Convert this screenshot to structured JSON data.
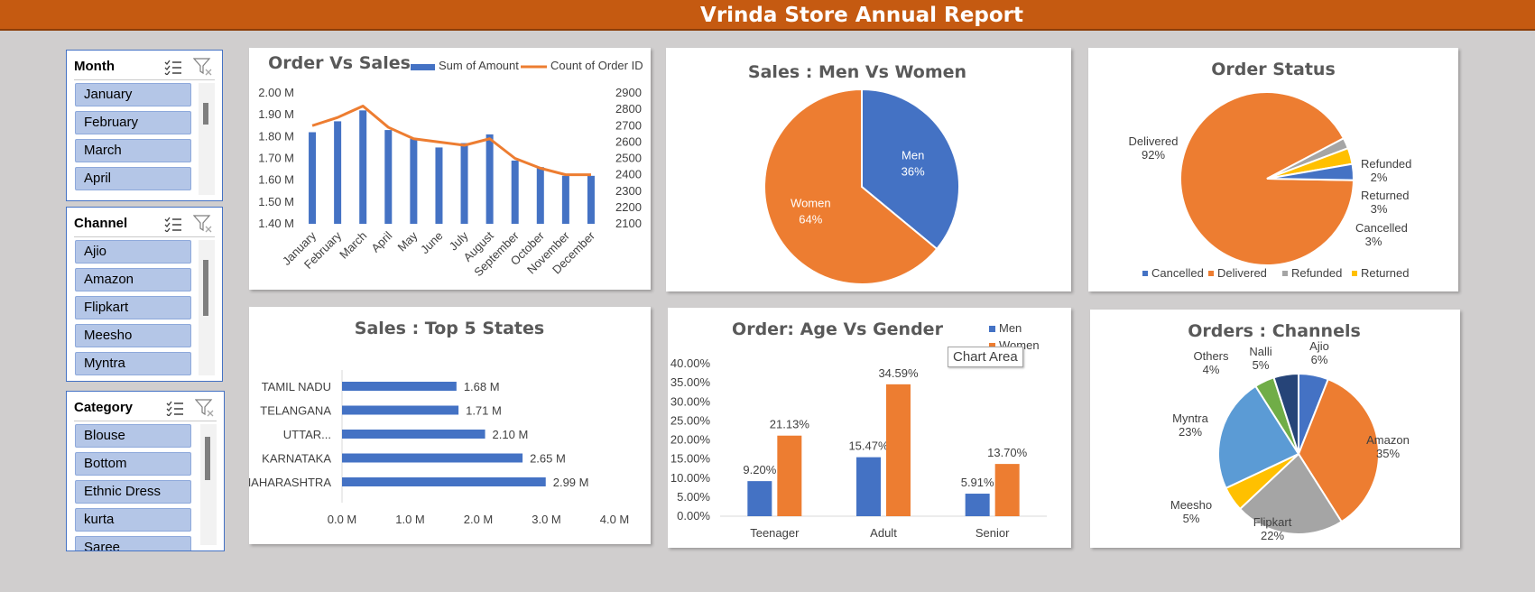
{
  "header": {
    "title": "Vrinda Store Annual Report"
  },
  "slicers": [
    {
      "title": "Month",
      "items": [
        "January",
        "February",
        "March",
        "April"
      ]
    },
    {
      "title": "Channel",
      "items": [
        "Ajio",
        "Amazon",
        "Flipkart",
        "Meesho",
        "Myntra"
      ]
    },
    {
      "title": "Category",
      "items": [
        "Blouse",
        "Bottom",
        "Ethnic Dress",
        "kurta",
        "Saree"
      ]
    }
  ],
  "tooltip": "Chart Area",
  "chart_data": [
    {
      "type": "bar",
      "title": "Order Vs Sales",
      "categories": [
        "January",
        "February",
        "March",
        "April",
        "May",
        "June",
        "July",
        "August",
        "September",
        "October",
        "November",
        "December"
      ],
      "series": [
        {
          "name": "Sum of Amount",
          "type": "bar",
          "axis": "left",
          "values": [
            1.82,
            1.87,
            1.92,
            1.83,
            1.79,
            1.75,
            1.77,
            1.81,
            1.69,
            1.66,
            1.62,
            1.62
          ]
        },
        {
          "name": "Count of Order ID",
          "type": "line",
          "axis": "right",
          "values": [
            2700,
            2750,
            2820,
            2690,
            2620,
            2600,
            2580,
            2620,
            2500,
            2440,
            2400,
            2400
          ]
        }
      ],
      "ylim": [
        1.4,
        2.0
      ],
      "y_ticks": [
        "1.40 M",
        "1.50 M",
        "1.60 M",
        "1.70 M",
        "1.80 M",
        "1.90 M",
        "2.00 M"
      ],
      "y2lim": [
        2100,
        2900
      ],
      "y2_ticks": [
        "2100",
        "2200",
        "2300",
        "2400",
        "2500",
        "2600",
        "2700",
        "2800",
        "2900"
      ],
      "legend": "top",
      "colors": [
        "#4472c4",
        "#ed7d31"
      ]
    },
    {
      "type": "pie",
      "title": "Sales : Men Vs Women",
      "slices": [
        {
          "label": "Men",
          "value": 36,
          "display": "36%",
          "color": "#4472c4"
        },
        {
          "label": "Women",
          "value": 64,
          "display": "64%",
          "color": "#ed7d31"
        }
      ]
    },
    {
      "type": "pie",
      "title": "Order Status",
      "slices": [
        {
          "label": "Delivered",
          "value": 92,
          "display": "92%",
          "color": "#ed7d31"
        },
        {
          "label": "Refunded",
          "value": 2,
          "display": "2%",
          "color": "#a5a5a5"
        },
        {
          "label": "Returned",
          "value": 3,
          "display": "3%",
          "color": "#ffc000"
        },
        {
          "label": "Cancelled",
          "value": 3,
          "display": "3%",
          "color": "#4472c4"
        }
      ],
      "legend": [
        "Cancelled",
        "Delivered",
        "Refunded",
        "Returned"
      ],
      "legend_colors": [
        "#4472c4",
        "#ed7d31",
        "#a5a5a5",
        "#ffc000"
      ],
      "legend_position": "bottom"
    },
    {
      "type": "bar",
      "orientation": "horizontal",
      "title": "Sales : Top 5 States",
      "categories": [
        "TAMIL NADU",
        "TELANGANA",
        "UTTAR...",
        "KARNATAKA",
        "MAHARASHTRA"
      ],
      "values": [
        1.68,
        1.71,
        2.1,
        2.65,
        2.99
      ],
      "value_labels": [
        "1.68 M",
        "1.71 M",
        "2.10 M",
        "2.65 M",
        "2.99 M"
      ],
      "xlim": [
        0,
        4
      ],
      "x_ticks": [
        "0.0 M",
        "1.0 M",
        "2.0 M",
        "3.0 M",
        "4.0 M"
      ],
      "color": "#4472c4"
    },
    {
      "type": "bar",
      "title": "Order: Age Vs Gender",
      "categories": [
        "Teenager",
        "Adult",
        "Senior"
      ],
      "series": [
        {
          "name": "Men",
          "values": [
            9.2,
            15.47,
            5.91
          ],
          "labels": [
            "9.20%",
            "15.47%",
            "5.91%"
          ]
        },
        {
          "name": "Women",
          "values": [
            21.13,
            34.59,
            13.7
          ],
          "labels": [
            "21.13%",
            "34.59%",
            "13.70%"
          ]
        }
      ],
      "ylim": [
        0,
        40
      ],
      "y_ticks": [
        "0.00%",
        "5.00%",
        "10.00%",
        "15.00%",
        "20.00%",
        "25.00%",
        "30.00%",
        "35.00%",
        "40.00%"
      ],
      "legend": "top-right",
      "colors": [
        "#4472c4",
        "#ed7d31"
      ]
    },
    {
      "type": "pie",
      "title": "Orders : Channels",
      "slices": [
        {
          "label": "Ajio",
          "value": 6,
          "display": "6%",
          "color": "#4472c4"
        },
        {
          "label": "Amazon",
          "value": 35,
          "display": "35%",
          "color": "#ed7d31"
        },
        {
          "label": "Flipkart",
          "value": 22,
          "display": "22%",
          "color": "#a5a5a5"
        },
        {
          "label": "Meesho",
          "value": 5,
          "display": "5%",
          "color": "#ffc000"
        },
        {
          "label": "Myntra",
          "value": 23,
          "display": "23%",
          "color": "#5b9bd5"
        },
        {
          "label": "Others",
          "value": 4,
          "display": "4%",
          "color": "#70ad47"
        },
        {
          "label": "Nalli",
          "value": 5,
          "display": "5%",
          "color": "#264478"
        }
      ]
    }
  ]
}
